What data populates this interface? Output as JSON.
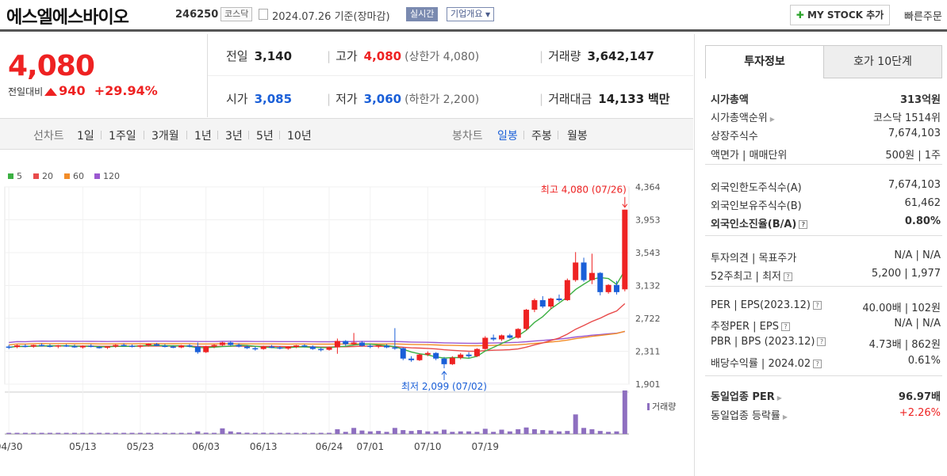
{
  "header": {
    "name": "에스엘에스바이오",
    "code": "246250",
    "market": "코스닥",
    "date": "2024.07.26",
    "basis": "기준(장마감)",
    "realtime": "실시간",
    "overview": "기업개요",
    "mystock": "MY STOCK 추가",
    "quick_order": "빠른주문"
  },
  "quote": {
    "price": "4,080",
    "change_label": "전일대비",
    "change": "940",
    "change_pct": "+29.94%",
    "prev_label": "전일",
    "prev": "3,140",
    "high_label": "고가",
    "high": "4,080",
    "upper_limit": "(상한가 4,080)",
    "volume_label": "거래량",
    "volume": "3,642,147",
    "open_label": "시가",
    "open": "3,085",
    "low_label": "저가",
    "low": "3,060",
    "lower_limit": "(하한가 2,200)",
    "amount_label": "거래대금",
    "amount": "14,133",
    "amount_unit": "백만"
  },
  "chart_tabs": {
    "line_label": "선차트",
    "line_ranges": [
      "1일",
      "1주일",
      "3개월",
      "1년",
      "3년",
      "5년",
      "10년"
    ],
    "candle_label": "봉차트",
    "candle_ranges": [
      "일봉",
      "주봉",
      "월봉"
    ],
    "selected": "일봉"
  },
  "chart_data": {
    "type": "candlestick",
    "legend": [
      {
        "name": "5",
        "color": "#3cb043"
      },
      {
        "name": "20",
        "color": "#e84b4b"
      },
      {
        "name": "60",
        "color": "#f28c28"
      },
      {
        "name": "120",
        "color": "#9b59d0"
      }
    ],
    "y_ticks": [
      "4,364",
      "3,953",
      "3,543",
      "3,132",
      "2,722",
      "2,311",
      "1,901"
    ],
    "ylim": [
      1901,
      4364
    ],
    "x_ticks": [
      "04/30",
      "05/13",
      "05/23",
      "06/03",
      "06/13",
      "06/24",
      "07/01",
      "07/10",
      "07/19"
    ],
    "high_annotation": "최고 4,080 (07/26)",
    "low_annotation": "최저 2,099 (07/02)",
    "volume_label": "거래량",
    "candles": [
      [
        2370,
        2390,
        2340,
        2360
      ],
      [
        2365,
        2395,
        2350,
        2385
      ],
      [
        2380,
        2400,
        2360,
        2370
      ],
      [
        2370,
        2395,
        2355,
        2390
      ],
      [
        2390,
        2410,
        2370,
        2385
      ],
      [
        2380,
        2400,
        2360,
        2370
      ],
      [
        2370,
        2390,
        2350,
        2385
      ],
      [
        2385,
        2400,
        2365,
        2375
      ],
      [
        2375,
        2395,
        2355,
        2360
      ],
      [
        2360,
        2385,
        2345,
        2380
      ],
      [
        2380,
        2400,
        2360,
        2370
      ],
      [
        2365,
        2380,
        2345,
        2355
      ],
      [
        2355,
        2375,
        2340,
        2370
      ],
      [
        2370,
        2400,
        2355,
        2390
      ],
      [
        2390,
        2410,
        2370,
        2380
      ],
      [
        2380,
        2395,
        2360,
        2370
      ],
      [
        2370,
        2390,
        2350,
        2385
      ],
      [
        2385,
        2410,
        2370,
        2405
      ],
      [
        2400,
        2415,
        2375,
        2380
      ],
      [
        2380,
        2400,
        2360,
        2370
      ],
      [
        2370,
        2385,
        2350,
        2360
      ],
      [
        2360,
        2390,
        2350,
        2385
      ],
      [
        2385,
        2400,
        2360,
        2370
      ],
      [
        2370,
        2420,
        2280,
        2300
      ],
      [
        2300,
        2380,
        2290,
        2370
      ],
      [
        2370,
        2400,
        2350,
        2390
      ],
      [
        2390,
        2430,
        2380,
        2420
      ],
      [
        2420,
        2440,
        2380,
        2390
      ],
      [
        2390,
        2410,
        2360,
        2370
      ],
      [
        2370,
        2385,
        2340,
        2350
      ],
      [
        2350,
        2370,
        2320,
        2340
      ],
      [
        2340,
        2380,
        2330,
        2370
      ],
      [
        2370,
        2390,
        2350,
        2360
      ],
      [
        2360,
        2375,
        2335,
        2345
      ],
      [
        2345,
        2370,
        2330,
        2365
      ],
      [
        2365,
        2390,
        2350,
        2385
      ],
      [
        2385,
        2400,
        2360,
        2370
      ],
      [
        2370,
        2385,
        2330,
        2340
      ],
      [
        2340,
        2360,
        2310,
        2330
      ],
      [
        2330,
        2370,
        2320,
        2360
      ],
      [
        2360,
        2470,
        2280,
        2440
      ],
      [
        2440,
        2450,
        2380,
        2400
      ],
      [
        2400,
        2540,
        2390,
        2420
      ],
      [
        2420,
        2440,
        2370,
        2380
      ],
      [
        2380,
        2400,
        2350,
        2370
      ],
      [
        2370,
        2390,
        2350,
        2385
      ],
      [
        2380,
        2400,
        2350,
        2360
      ],
      [
        2360,
        2600,
        2330,
        2350
      ],
      [
        2350,
        2360,
        2200,
        2220
      ],
      [
        2220,
        2250,
        2180,
        2200
      ],
      [
        2200,
        2280,
        2190,
        2270
      ],
      [
        2270,
        2310,
        2250,
        2290
      ],
      [
        2290,
        2300,
        2200,
        2220
      ],
      [
        2220,
        2240,
        2099,
        2150
      ],
      [
        2150,
        2250,
        2140,
        2230
      ],
      [
        2230,
        2290,
        2210,
        2270
      ],
      [
        2270,
        2300,
        2230,
        2250
      ],
      [
        2250,
        2350,
        2240,
        2340
      ],
      [
        2340,
        2500,
        2330,
        2480
      ],
      [
        2480,
        2520,
        2440,
        2460
      ],
      [
        2460,
        2520,
        2440,
        2510
      ],
      [
        2510,
        2530,
        2470,
        2480
      ],
      [
        2480,
        2600,
        2470,
        2590
      ],
      [
        2590,
        2840,
        2570,
        2830
      ],
      [
        2830,
        2970,
        2800,
        2950
      ],
      [
        2950,
        3000,
        2850,
        2870
      ],
      [
        2870,
        2980,
        2840,
        2970
      ],
      [
        2970,
        3020,
        2930,
        2950
      ],
      [
        2950,
        3220,
        2940,
        3200
      ],
      [
        3200,
        3550,
        3180,
        3420
      ],
      [
        3420,
        3480,
        3180,
        3200
      ],
      [
        3200,
        3530,
        3150,
        3290
      ],
      [
        3290,
        3300,
        3010,
        3050
      ],
      [
        3050,
        3150,
        3030,
        3140
      ],
      [
        3140,
        3190,
        3020,
        3050
      ],
      [
        3085,
        4080,
        3060,
        4080
      ]
    ],
    "volume": [
      0.02,
      0.02,
      0.02,
      0.02,
      0.02,
      0.02,
      0.02,
      0.02,
      0.02,
      0.02,
      0.02,
      0.02,
      0.02,
      0.02,
      0.02,
      0.02,
      0.02,
      0.02,
      0.02,
      0.02,
      0.02,
      0.02,
      0.02,
      0.06,
      0.03,
      0.02,
      0.13,
      0.06,
      0.04,
      0.03,
      0.02,
      0.03,
      0.02,
      0.02,
      0.02,
      0.02,
      0.02,
      0.02,
      0.02,
      0.02,
      0.11,
      0.05,
      0.14,
      0.08,
      0.06,
      0.07,
      0.05,
      0.14,
      0.09,
      0.07,
      0.09,
      0.06,
      0.06,
      0.1,
      0.05,
      0.06,
      0.06,
      0.05,
      0.12,
      0.05,
      0.1,
      0.06,
      0.11,
      0.15,
      0.11,
      0.09,
      0.08,
      0.06,
      0.07,
      0.45,
      0.14,
      0.11,
      0.07,
      0.05,
      0.06,
      1.0
    ]
  },
  "invest": {
    "tab_on": "투자정보",
    "tab_off": "호가 10단계",
    "rows": [
      {
        "l": "시가총액",
        "r": "313억원",
        "bold": true
      },
      {
        "l": "시가총액순위",
        "r": "코스닥 1514위",
        "tri": true
      },
      {
        "l": "상장주식수",
        "r": "7,674,103"
      },
      {
        "l": "액면가 | 매매단위",
        "r": "500원 | 1주"
      },
      {
        "l": "외국인한도주식수(A)",
        "r": "7,674,103"
      },
      {
        "l": "외국인보유주식수(B)",
        "r": "61,462"
      },
      {
        "l": "외국인소진율(B/A)",
        "r": "0.80%",
        "bold": true,
        "qm": true
      },
      {
        "l": "투자의견 | 목표주가",
        "r": "N/A | N/A"
      },
      {
        "l": "52주최고 | 최저",
        "r": "5,200 | 1,977",
        "qm": true
      },
      {
        "l": "PER | EPS(2023.12)",
        "r": "40.00배 | 102원",
        "qm": true
      },
      {
        "l": "추정PER | EPS",
        "r": "N/A | N/A",
        "qm": true
      },
      {
        "l": "PBR | BPS (2023.12)",
        "r": "4.73배 | 862원",
        "qm": true
      },
      {
        "l": "배당수익률 | 2024.02",
        "r": "0.61%",
        "qm": true
      },
      {
        "l": "동일업종 PER",
        "r": "96.97배",
        "bold": true,
        "tri": true
      },
      {
        "l": "동일업종 등락률",
        "r": "+2.26%",
        "tri": true,
        "red": true
      }
    ]
  }
}
